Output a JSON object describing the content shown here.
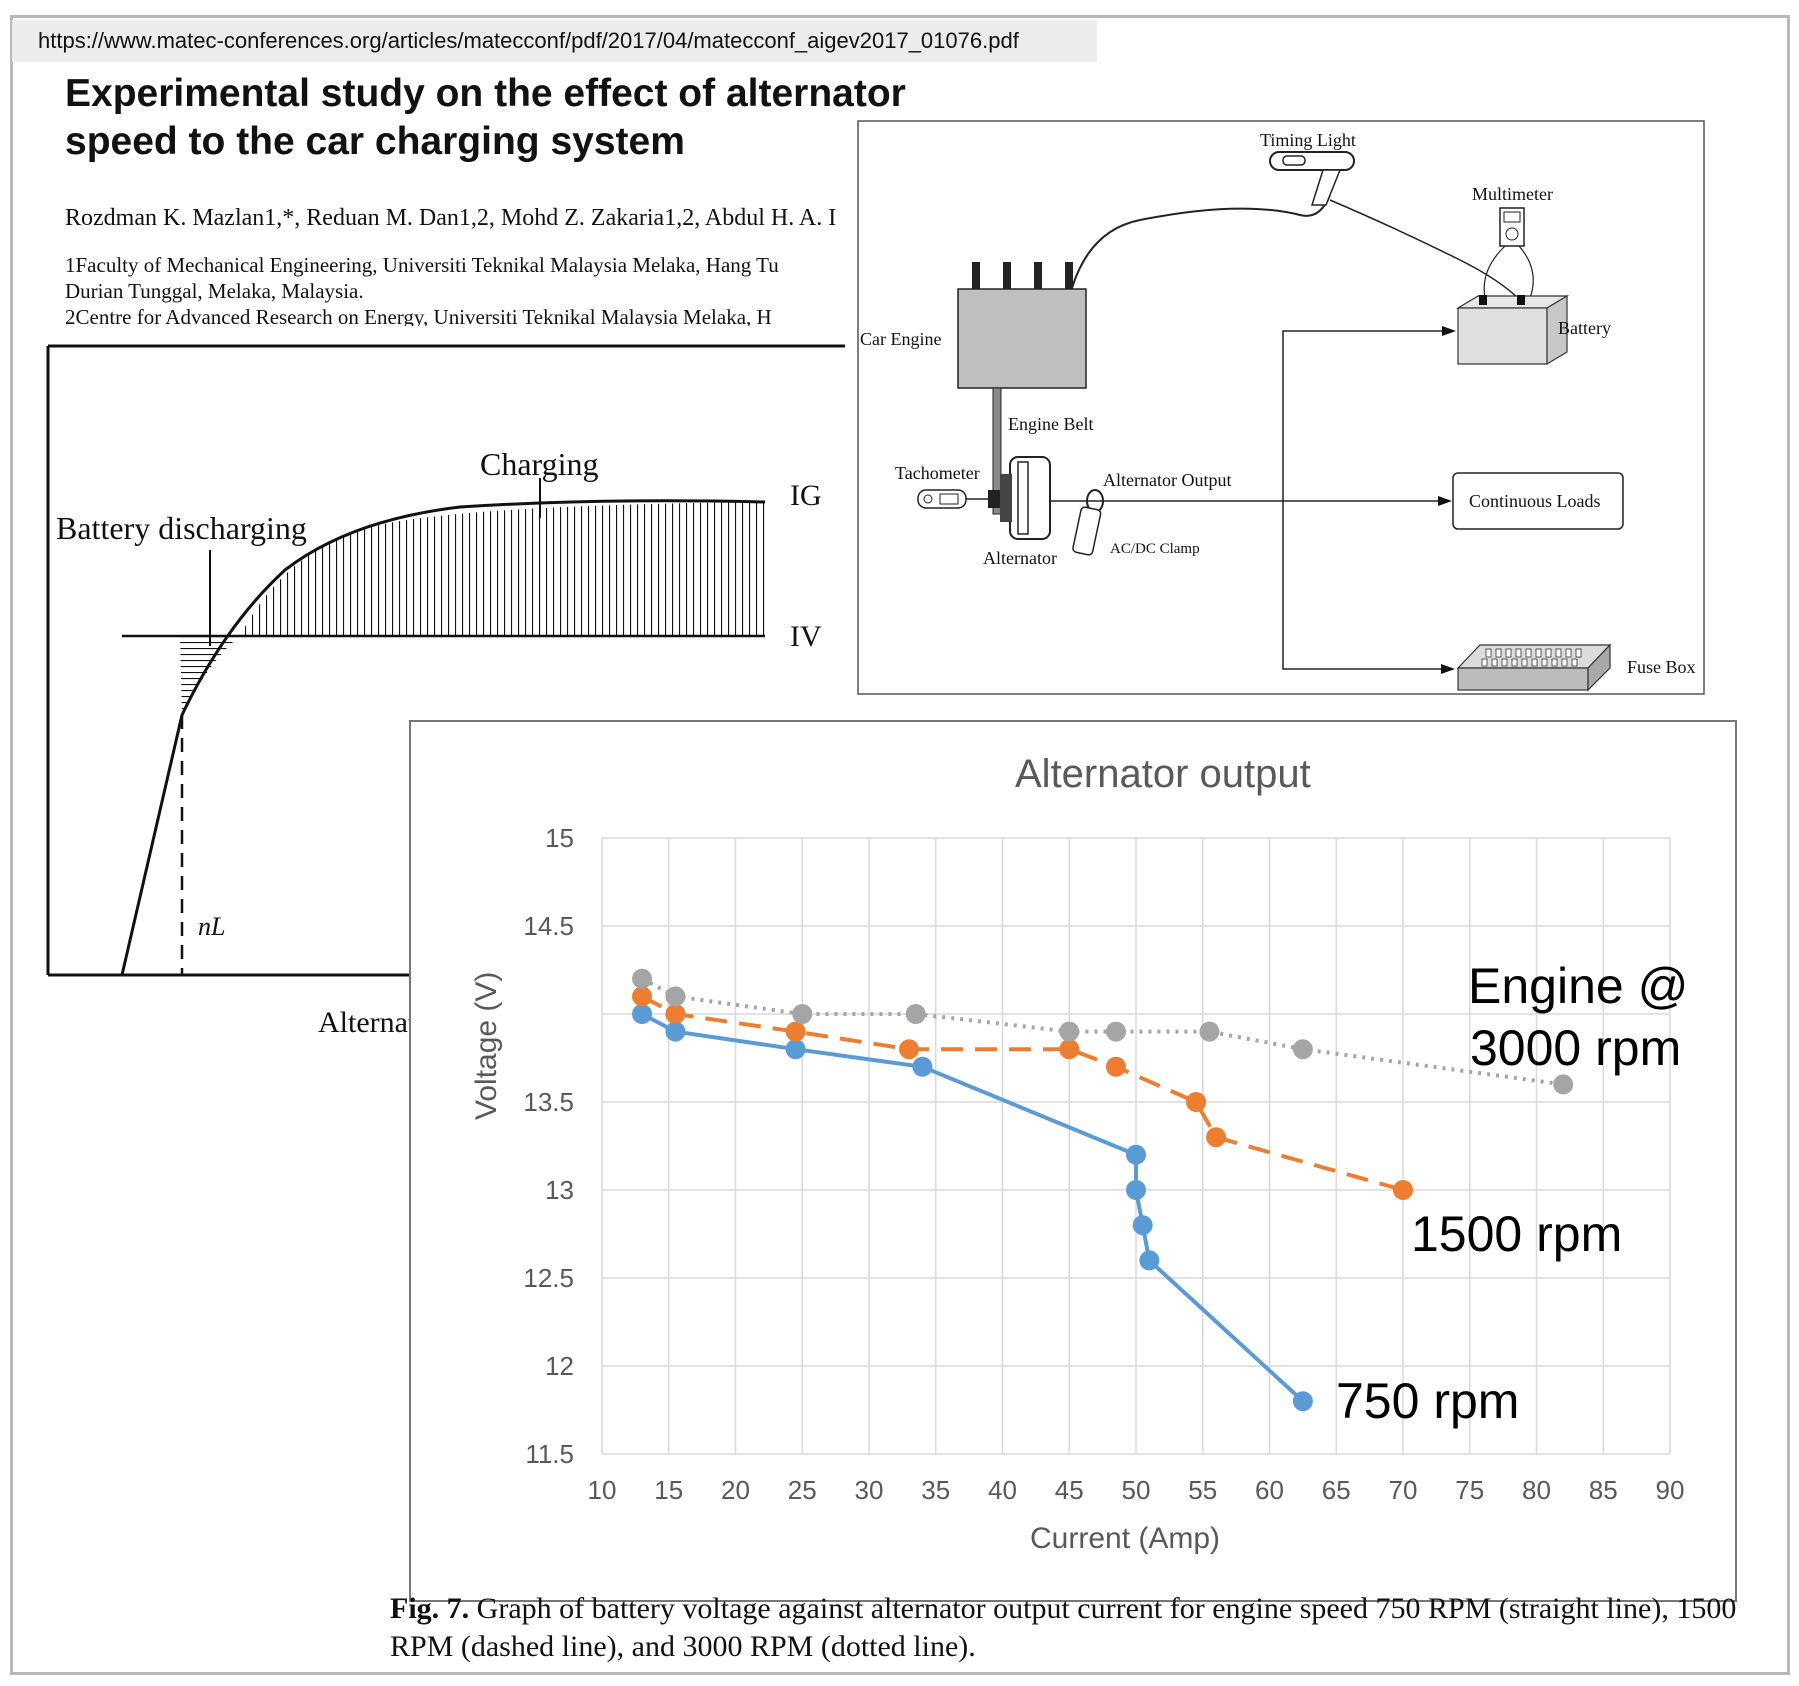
{
  "url": "https://www.matec-conferences.org/articles/matecconf/pdf/2017/04/matecconf_aigev2017_01076.pdf",
  "paper": {
    "title_line1": "Experimental study on the effect of alternator",
    "title_line2": "speed to the car charging system",
    "authors": "Rozdman K. Mazlan1,*, Reduan M. Dan1,2, Mohd Z. Zakaria1,2, Abdul H. A. I",
    "affil1_line1": "1Faculty of Mechanical Engineering, Universiti Teknikal Malaysia Melaka, Hang Tu",
    "affil1_line2": "Durian Tunggal, Melaka, Malaysia.",
    "affil2": "2Centre for Advanced Research on Energy, Universiti Teknikal Malaysia Melaka, H"
  },
  "sketch": {
    "label_charging": "Charging",
    "label_discharging": "Battery discharging",
    "label_ig": "IG",
    "label_iv": "IV",
    "label_nl": "nL",
    "label_xaxis": "Alternator speed"
  },
  "schematic": {
    "timing_light": "Timing Light",
    "multimeter": "Multimeter",
    "battery": "Battery",
    "car_engine": "Car Engine",
    "engine_belt": "Engine Belt",
    "tachometer": "Tachometer",
    "alternator_output": "Alternator Output",
    "continuous_loads": "Continuous Loads",
    "alternator": "Alternator",
    "acdc_clamp": "AC/DC Clamp",
    "fuse_box": "Fuse Box"
  },
  "chart_data": {
    "type": "line",
    "title": "Alternator output",
    "xlabel": "Current (Amp)",
    "ylabel": "Voltage (V)",
    "xlim": [
      10,
      90
    ],
    "ylim": [
      11.5,
      15
    ],
    "x_ticks": [
      10,
      15,
      20,
      25,
      30,
      35,
      40,
      45,
      50,
      55,
      60,
      65,
      70,
      75,
      80,
      85,
      90
    ],
    "y_ticks": [
      11.5,
      12,
      12.5,
      13,
      13.5,
      14,
      14.5,
      15
    ],
    "y_tick_labels": [
      "11.5",
      "12",
      "12.5",
      "13",
      "13.5",
      "",
      "14.5",
      "15"
    ],
    "grid": true,
    "series": [
      {
        "name": "750 rpm",
        "color": "#5b9bd5",
        "style": "solid",
        "points": [
          [
            13,
            14.0
          ],
          [
            15.5,
            13.9
          ],
          [
            24.5,
            13.8
          ],
          [
            34,
            13.7
          ],
          [
            50,
            13.2
          ],
          [
            50,
            13.0
          ],
          [
            50.5,
            12.8
          ],
          [
            51,
            12.6
          ],
          [
            62.5,
            11.8
          ]
        ]
      },
      {
        "name": "1500 rpm",
        "color": "#ed7d31",
        "style": "dashed",
        "points": [
          [
            13,
            14.1
          ],
          [
            15.5,
            14.0
          ],
          [
            24.5,
            13.9
          ],
          [
            33,
            13.8
          ],
          [
            45,
            13.8
          ],
          [
            48.5,
            13.7
          ],
          [
            54.5,
            13.5
          ],
          [
            56,
            13.3
          ],
          [
            70,
            13.0
          ]
        ]
      },
      {
        "name": "Engine @ 3000 rpm",
        "color": "#a5a5a5",
        "style": "dotted",
        "points": [
          [
            13,
            14.2
          ],
          [
            15.5,
            14.1
          ],
          [
            25,
            14.0
          ],
          [
            33.5,
            14.0
          ],
          [
            45,
            13.9
          ],
          [
            48.5,
            13.9
          ],
          [
            55.5,
            13.9
          ],
          [
            62.5,
            13.8
          ],
          [
            82,
            13.6
          ]
        ]
      }
    ]
  },
  "annotations": {
    "engine3000_line1": "Engine @",
    "engine3000_line2": "3000 rpm",
    "rpm1500": "1500 rpm",
    "rpm750": "750 rpm"
  },
  "caption": {
    "label": "Fig. 7.",
    "text": " Graph of battery voltage against alternator output current for engine speed 750 RPM (straight line), 1500 RPM (dashed line), and 3000 RPM (dotted line)."
  }
}
